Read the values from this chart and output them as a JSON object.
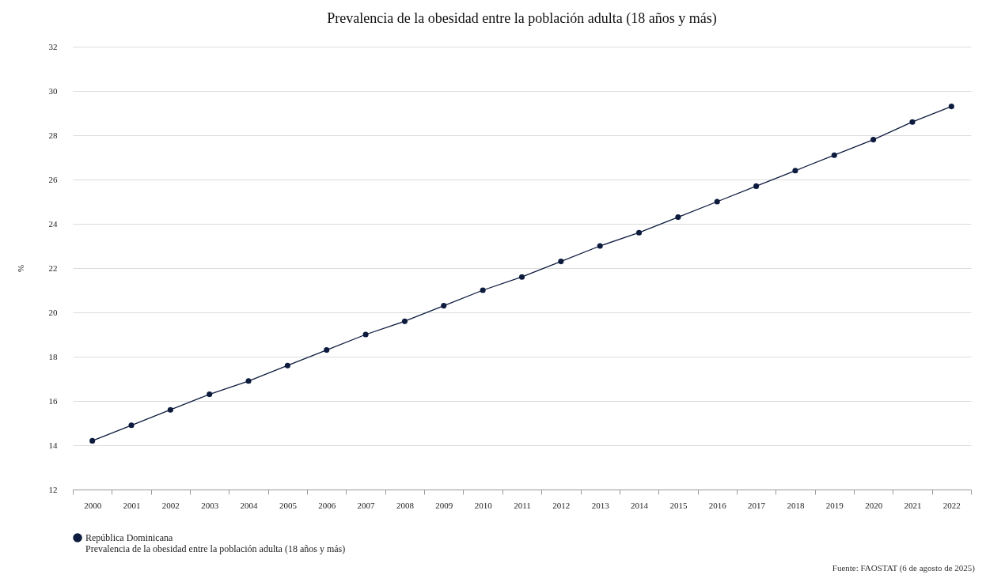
{
  "chart_data": {
    "type": "line",
    "title": "Prevalencia de la obesidad entre la población adulta (18 años y más)",
    "ylabel": "%",
    "categories": [
      "2000",
      "2001",
      "2002",
      "2003",
      "2004",
      "2005",
      "2006",
      "2007",
      "2008",
      "2009",
      "2010",
      "2011",
      "2012",
      "2013",
      "2014",
      "2015",
      "2016",
      "2017",
      "2018",
      "2019",
      "2020",
      "2021",
      "2022"
    ],
    "series": [
      {
        "name": "República Dominicana\nPrevalencia de la obesidad entre la población adulta (18 años y más)",
        "color": "#0d1b3e",
        "values": [
          14.2,
          14.9,
          15.6,
          16.3,
          16.9,
          17.6,
          18.3,
          19.0,
          19.6,
          20.3,
          21.0,
          21.6,
          22.3,
          23.0,
          23.6,
          24.3,
          25.0,
          25.7,
          26.4,
          27.1,
          27.8,
          28.6,
          29.3
        ]
      }
    ],
    "ylim": [
      12,
      32
    ],
    "yticks": [
      12,
      14,
      16,
      18,
      20,
      22,
      24,
      26,
      28,
      30,
      32
    ],
    "grid": "y",
    "marker": "circle",
    "line_style": "solid",
    "legend": "bottom",
    "annotations": [
      "Fuente: FAOSTAT (6 de agosto de 2025)"
    ]
  }
}
